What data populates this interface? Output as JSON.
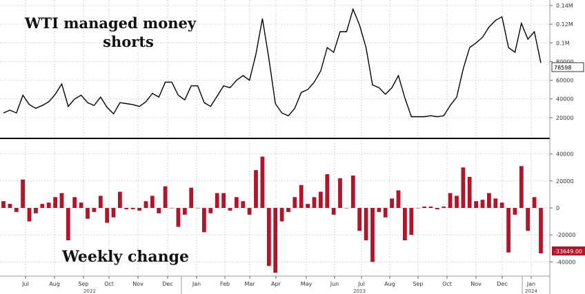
{
  "chart_data": [
    {
      "type": "line",
      "annotation_line1": "WTI managed money",
      "annotation_line2": "shorts",
      "ylim": [
        0,
        140000
      ],
      "y_ticks": [
        20000,
        40000,
        60000,
        80000,
        100000,
        120000,
        140000
      ],
      "y_tick_labels": [
        "20000",
        "40000",
        "60000",
        "80000",
        "0.1M",
        "0.12M",
        "0.14M"
      ],
      "last_value_label": "78598",
      "grid": true,
      "series": [
        {
          "color": "#000000",
          "values": [
            25000,
            28000,
            25000,
            44000,
            34000,
            30000,
            33000,
            37000,
            45000,
            56000,
            32000,
            40000,
            44000,
            36000,
            33000,
            42000,
            31000,
            24000,
            36000,
            35000,
            34000,
            32000,
            37000,
            46000,
            42000,
            58000,
            58000,
            44000,
            39000,
            54000,
            54000,
            36000,
            32000,
            43000,
            54000,
            52000,
            60000,
            65000,
            60000,
            88000,
            126000,
            83000,
            35000,
            25000,
            22000,
            30000,
            47000,
            50000,
            58000,
            70000,
            95000,
            90000,
            112000,
            112000,
            136000,
            119000,
            95000,
            55000,
            52000,
            45000,
            52000,
            65000,
            41000,
            21000,
            21000,
            21000,
            22000,
            21000,
            22000,
            33000,
            42000,
            72000,
            95000,
            100000,
            106000,
            117000,
            124000,
            128000,
            95000,
            90000,
            121000,
            104000,
            112000,
            78598
          ]
        }
      ]
    },
    {
      "type": "bar",
      "annotation": "Weekly change",
      "ylim": [
        -50000,
        50000
      ],
      "y_ticks": [
        -40000,
        -20000,
        0,
        20000,
        40000
      ],
      "y_tick_labels": [
        "-40000",
        "-20000",
        "0",
        "20000",
        "40000"
      ],
      "last_value_label": "-33649.00",
      "grid": true,
      "series": [
        {
          "color": "#b0152c",
          "values": [
            5000,
            3000,
            -3000,
            21000,
            -10000,
            -4000,
            3000,
            4000,
            8000,
            11000,
            -24000,
            8000,
            4000,
            -8000,
            -3000,
            9000,
            -11000,
            -7000,
            12000,
            -1000,
            -1000,
            -2000,
            5000,
            9000,
            -4000,
            16000,
            0,
            -14000,
            -5000,
            15000,
            0,
            -18000,
            -4000,
            11000,
            11000,
            -2000,
            8000,
            5000,
            -5000,
            28000,
            38000,
            -43000,
            -48000,
            -10000,
            -3000,
            8000,
            17000,
            3000,
            8000,
            12000,
            25000,
            -5000,
            22000,
            0,
            24000,
            -17000,
            -24000,
            -40000,
            -3000,
            -7000,
            7000,
            13000,
            -24000,
            -20000,
            0,
            1000,
            1000,
            -1000,
            1000,
            11000,
            9000,
            30000,
            23000,
            5000,
            6000,
            11000,
            7000,
            4000,
            -33000,
            -5000,
            31000,
            -17000,
            8000,
            -33649
          ]
        }
      ]
    }
  ],
  "x_axis": {
    "month_labels": [
      "Jul",
      "Aug",
      "Sep",
      "Oct",
      "Nov",
      "Dec",
      "Jan",
      "Feb",
      "Mar",
      "Apr",
      "May",
      "Jun",
      "Jul",
      "Aug",
      "Sep",
      "Oct",
      "Nov",
      "Dec",
      "Jan"
    ],
    "year_labels": [
      "2022",
      "2023",
      "2024"
    ]
  },
  "colors": {
    "line": "#000000",
    "bars": "#b0152c",
    "grid": "#d3d3d3",
    "separator": "#000000",
    "line_value_box": "#ffffff",
    "bar_value_box": "#b0152c"
  }
}
